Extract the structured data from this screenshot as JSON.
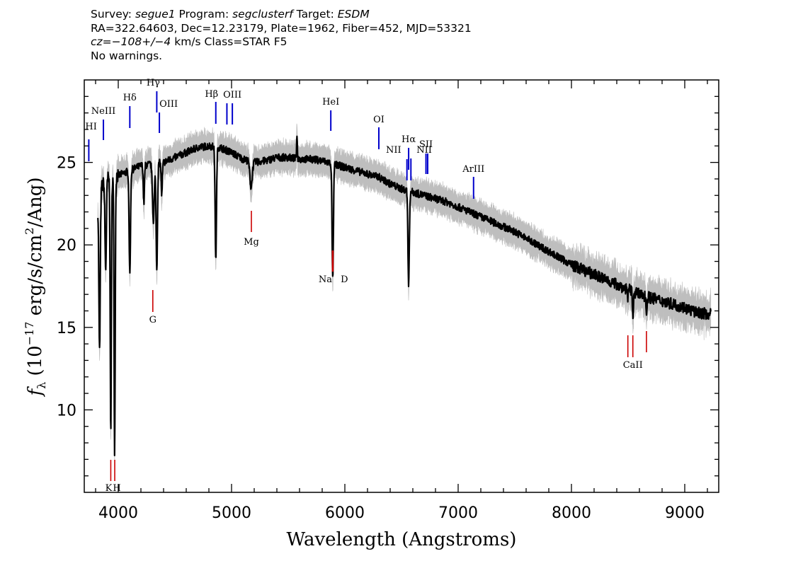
{
  "header": {
    "line1_parts": [
      {
        "text": "Survey: ",
        "italic": false
      },
      {
        "text": "segue1",
        "italic": true
      },
      {
        "text": " Program: ",
        "italic": false
      },
      {
        "text": "segclusterf",
        "italic": true
      },
      {
        "text": " Target: ",
        "italic": false
      },
      {
        "text": "ESDM",
        "italic": true
      }
    ],
    "line2": "RA=322.64603, Dec=12.23179, Plate=1962, Fiber=452, MJD=53321",
    "line3_parts": [
      {
        "text": "cz=",
        "italic": true
      },
      {
        "text": "−108+/−4",
        "italic": true
      },
      {
        "text": " km/s Class=STAR F5",
        "italic": false
      }
    ],
    "line4": "No warnings."
  },
  "chart_data": {
    "type": "line",
    "xlabel": "Wavelength (Angstroms)",
    "ylabel": "f_λ (10^-17 erg/s/cm^2/Ang)",
    "ylabel_parts": {
      "f": "f",
      "sub": "λ",
      "pre": " (10",
      "exp": "−17",
      "mid": " erg/s/cm",
      "exp2": "2",
      "post": "/Ang)"
    },
    "xlim": [
      3700,
      9300
    ],
    "ylim": [
      5,
      30
    ],
    "xticks": [
      4000,
      5000,
      6000,
      7000,
      8000,
      9000
    ],
    "yticks": [
      10,
      15,
      20,
      25
    ],
    "grid": false,
    "series": [
      {
        "color": "#000000",
        "continuum": [
          [
            3820,
            22.5
          ],
          [
            3850,
            23.5
          ],
          [
            3900,
            24.0
          ],
          [
            4000,
            24.2
          ],
          [
            4100,
            24.5
          ],
          [
            4200,
            24.8
          ],
          [
            4300,
            24.9
          ],
          [
            4400,
            25.0
          ],
          [
            4500,
            25.3
          ],
          [
            4600,
            25.6
          ],
          [
            4700,
            25.9
          ],
          [
            4800,
            26.0
          ],
          [
            4900,
            25.9
          ],
          [
            5000,
            25.6
          ],
          [
            5100,
            25.2
          ],
          [
            5200,
            25.0
          ],
          [
            5300,
            25.1
          ],
          [
            5400,
            25.3
          ],
          [
            5500,
            25.3
          ],
          [
            5600,
            25.2
          ],
          [
            5700,
            25.2
          ],
          [
            5800,
            25.1
          ],
          [
            5900,
            24.9
          ],
          [
            6000,
            24.7
          ],
          [
            6100,
            24.5
          ],
          [
            6200,
            24.3
          ],
          [
            6300,
            24.1
          ],
          [
            6400,
            23.7
          ],
          [
            6500,
            23.4
          ],
          [
            6600,
            23.2
          ],
          [
            6700,
            23.0
          ],
          [
            6800,
            22.8
          ],
          [
            6900,
            22.6
          ],
          [
            7000,
            22.3
          ],
          [
            7100,
            22.0
          ],
          [
            7200,
            21.7
          ],
          [
            7300,
            21.4
          ],
          [
            7400,
            21.1
          ],
          [
            7500,
            20.8
          ],
          [
            7600,
            20.4
          ],
          [
            7700,
            20.0
          ],
          [
            7800,
            19.6
          ],
          [
            7900,
            19.2
          ],
          [
            8000,
            18.8
          ],
          [
            8100,
            18.5
          ],
          [
            8200,
            18.2
          ],
          [
            8300,
            17.9
          ],
          [
            8400,
            17.6
          ],
          [
            8500,
            17.3
          ],
          [
            8600,
            17.0
          ],
          [
            8700,
            16.8
          ],
          [
            8800,
            16.6
          ],
          [
            8900,
            16.4
          ],
          [
            9000,
            16.2
          ],
          [
            9100,
            15.9
          ],
          [
            9230,
            15.8
          ]
        ],
        "absorption": [
          [
            3835,
            13.5,
            6
          ],
          [
            3889,
            18.5,
            6
          ],
          [
            3934,
            8.6,
            5
          ],
          [
            3968,
            7.6,
            5
          ],
          [
            4102,
            18.2,
            6
          ],
          [
            4226,
            22.5,
            5
          ],
          [
            4310,
            21.5,
            8
          ],
          [
            4340,
            18.5,
            6
          ],
          [
            4384,
            23.0,
            5
          ],
          [
            4861,
            19.2,
            6
          ],
          [
            5172,
            23.5,
            10
          ],
          [
            5890,
            20.8,
            5
          ],
          [
            5896,
            20.8,
            5
          ],
          [
            6563,
            17.6,
            6
          ],
          [
            8498,
            16.8,
            4
          ],
          [
            8542,
            15.5,
            4
          ],
          [
            8662,
            15.8,
            4
          ]
        ],
        "emission": [
          [
            5577,
            26.8,
            3
          ],
          [
            6300,
            24.2,
            3
          ]
        ]
      },
      {
        "color": "#bebebe",
        "role": "error band"
      }
    ],
    "emission_lines": [
      {
        "label": "HΙ",
        "wave": 3740,
        "color": "#0000cc"
      },
      {
        "label": "NeIII",
        "wave": 3869,
        "color": "#0000cc"
      },
      {
        "label": "Hδ",
        "wave": 4102,
        "color": "#0000cc"
      },
      {
        "label": "Hγ",
        "wave": 4340,
        "color": "#0000cc"
      },
      {
        "label": "OIII",
        "wave": 4363,
        "color": "#0000cc"
      },
      {
        "label": "Hβ",
        "wave": 4861,
        "color": "#0000cc"
      },
      {
        "label": "OIII",
        "wave": 4959,
        "color": "#0000cc"
      },
      {
        "label": "OIII",
        "wave": 5007,
        "color": "#0000cc"
      },
      {
        "label": "HeI",
        "wave": 5876,
        "color": "#0000cc"
      },
      {
        "label": "OI",
        "wave": 6300,
        "color": "#0000cc"
      },
      {
        "label": "NII",
        "wave": 6548,
        "color": "#0000cc"
      },
      {
        "label": "Hα",
        "wave": 6563,
        "color": "#0000cc"
      },
      {
        "label": "NII",
        "wave": 6583,
        "color": "#0000cc"
      },
      {
        "label": "SII",
        "wave": 6716,
        "color": "#0000cc"
      },
      {
        "label": "SII",
        "wave": 6731,
        "color": "#0000cc"
      },
      {
        "label": "ArIII",
        "wave": 7136,
        "color": "#0000cc"
      }
    ],
    "absorption_lines": [
      {
        "label": "K",
        "wave": 3934,
        "color": "#cc0000"
      },
      {
        "label": "H",
        "wave": 3969,
        "color": "#cc0000"
      },
      {
        "label": "G",
        "wave": 4305,
        "color": "#cc0000"
      },
      {
        "label": "Mg",
        "wave": 5175,
        "color": "#cc0000"
      },
      {
        "label": "Na",
        "wave": 5890,
        "color": "#cc0000"
      },
      {
        "label": "D",
        "wave": 5896,
        "color": "#cc0000"
      },
      {
        "label": "CaII",
        "wave": 8498,
        "color": "#cc0000"
      },
      {
        "label": "CaII",
        "wave": 8542,
        "color": "#cc0000"
      },
      {
        "label": "CaII",
        "wave": 8662,
        "color": "#cc0000"
      }
    ]
  }
}
